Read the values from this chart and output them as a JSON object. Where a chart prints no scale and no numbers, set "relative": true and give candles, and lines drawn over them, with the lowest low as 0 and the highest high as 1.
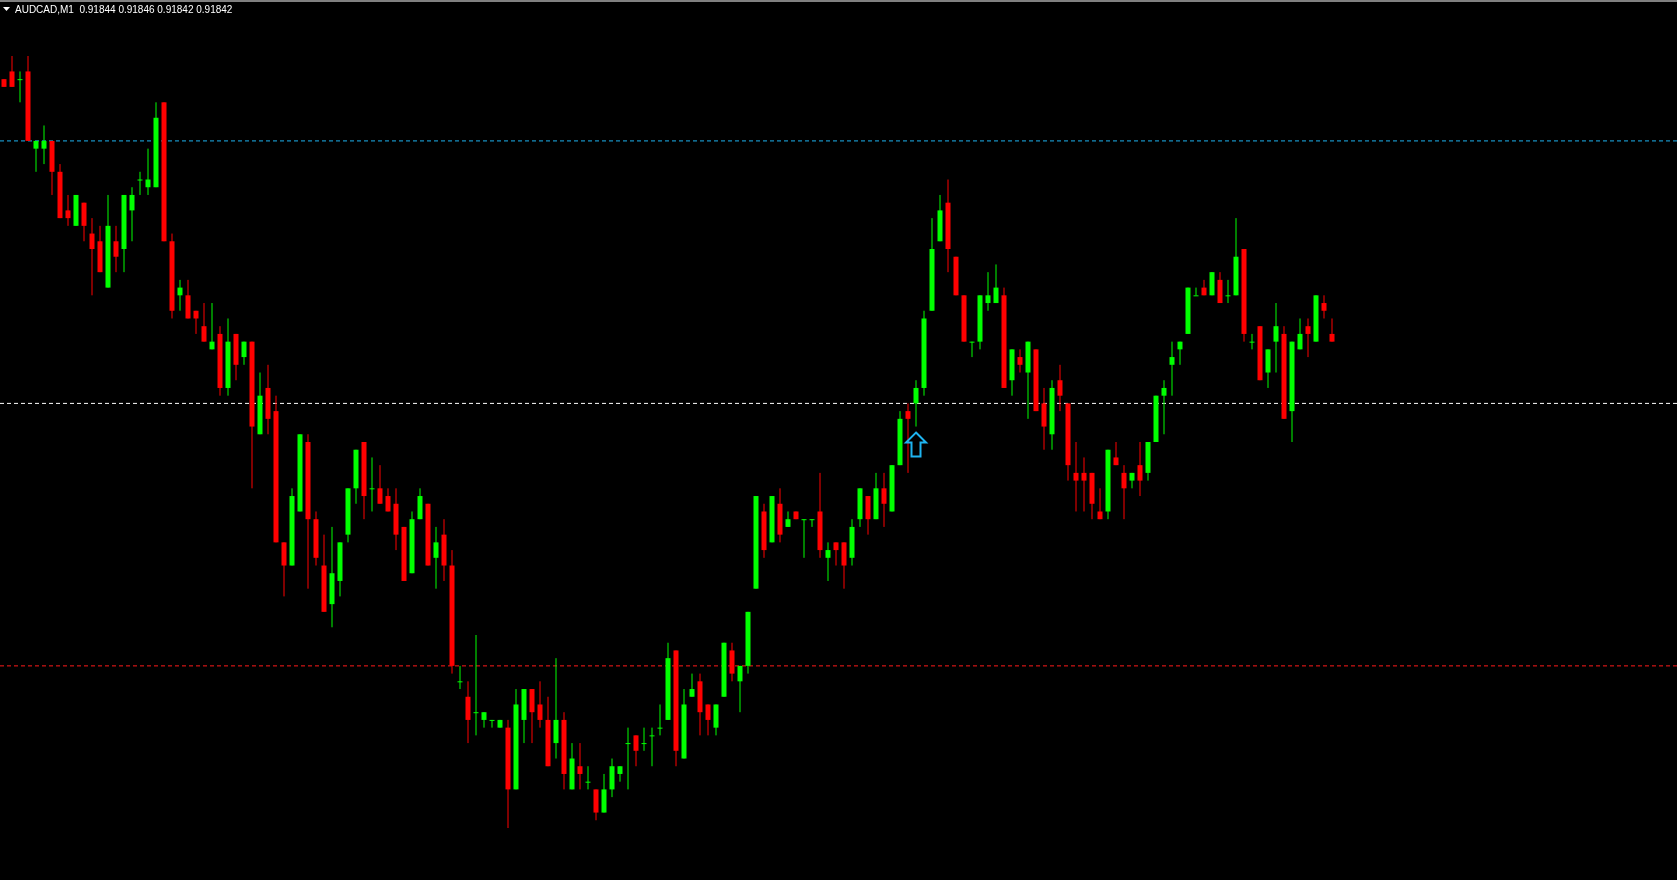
{
  "chart_data": {
    "type": "candlestick",
    "title": "AUDCAD,M1  0.91844 0.91846 0.91842 0.91842",
    "relative": true,
    "categories": [
      null,
      null,
      null,
      null,
      null,
      null,
      null,
      null,
      null,
      null,
      null,
      null,
      null,
      null,
      null,
      null,
      null,
      null,
      null,
      null,
      null,
      null,
      null,
      null,
      null,
      null,
      null,
      null,
      null,
      null,
      null,
      null,
      null,
      null,
      null,
      null,
      null,
      null,
      null,
      null,
      null,
      null,
      null,
      null,
      null,
      null,
      null,
      null,
      null,
      null,
      null,
      null,
      null,
      null,
      null,
      null,
      null,
      null,
      null,
      null,
      null,
      null,
      null,
      null,
      null,
      null,
      null,
      null,
      null,
      null,
      null,
      null,
      null,
      null,
      null,
      null,
      null,
      null,
      null,
      null,
      null,
      null,
      null,
      null,
      null,
      null,
      null,
      null,
      null,
      null,
      null,
      null,
      null,
      null,
      null,
      null,
      null,
      null,
      null,
      null,
      null,
      null,
      null,
      null,
      null,
      null,
      null,
      null,
      null,
      null,
      null,
      null,
      null,
      null,
      null,
      null,
      null,
      null,
      null,
      null,
      null,
      null,
      null,
      null,
      null,
      null,
      null,
      null,
      null,
      null,
      null,
      null,
      null,
      null,
      null,
      null,
      null,
      null,
      null,
      null,
      null,
      null,
      null,
      null,
      null,
      null,
      null,
      null,
      null,
      null,
      null,
      null,
      null,
      null,
      null,
      null,
      null,
      null,
      null,
      null,
      null,
      null,
      null,
      null,
      null,
      null,
      null
    ],
    "ohlc": [
      [
        0.97,
        0.97,
        0.96,
        0.96
      ],
      [
        0.98,
        1.0,
        0.96,
        0.96
      ],
      [
        0.97,
        0.98,
        0.94,
        0.97
      ],
      [
        0.98,
        1.0,
        0.89,
        0.89
      ],
      [
        0.88,
        0.89,
        0.85,
        0.89
      ],
      [
        0.88,
        0.91,
        0.86,
        0.89
      ],
      [
        0.89,
        0.89,
        0.82,
        0.85
      ],
      [
        0.85,
        0.86,
        0.79,
        0.79
      ],
      [
        0.8,
        0.82,
        0.78,
        0.79
      ],
      [
        0.78,
        0.82,
        0.78,
        0.82
      ],
      [
        0.81,
        0.81,
        0.76,
        0.78
      ],
      [
        0.77,
        0.79,
        0.69,
        0.75
      ],
      [
        0.76,
        0.78,
        0.72,
        0.72
      ],
      [
        0.7,
        0.82,
        0.7,
        0.78
      ],
      [
        0.76,
        0.78,
        0.72,
        0.74
      ],
      [
        0.75,
        0.82,
        0.72,
        0.82
      ],
      [
        0.8,
        0.83,
        0.76,
        0.82
      ],
      [
        0.84,
        0.85,
        0.82,
        0.84
      ],
      [
        0.83,
        0.88,
        0.82,
        0.84
      ],
      [
        0.83,
        0.94,
        0.83,
        0.92
      ],
      [
        0.94,
        0.94,
        0.76,
        0.76
      ],
      [
        0.76,
        0.77,
        0.66,
        0.67
      ],
      [
        0.69,
        0.71,
        0.67,
        0.7
      ],
      [
        0.69,
        0.71,
        0.66,
        0.66
      ],
      [
        0.67,
        0.67,
        0.64,
        0.66
      ],
      [
        0.65,
        0.68,
        0.63,
        0.63
      ],
      [
        0.62,
        0.68,
        0.62,
        0.63
      ],
      [
        0.64,
        0.65,
        0.56,
        0.57
      ],
      [
        0.57,
        0.66,
        0.56,
        0.63
      ],
      [
        0.64,
        0.64,
        0.58,
        0.6
      ],
      [
        0.61,
        0.63,
        0.6,
        0.63
      ],
      [
        0.63,
        0.63,
        0.44,
        0.52
      ],
      [
        0.51,
        0.59,
        0.51,
        0.56
      ],
      [
        0.57,
        0.6,
        0.51,
        0.53
      ],
      [
        0.54,
        0.56,
        0.37,
        0.37
      ],
      [
        0.37,
        0.37,
        0.3,
        0.34
      ],
      [
        0.34,
        0.44,
        0.34,
        0.43
      ],
      [
        0.41,
        0.51,
        0.41,
        0.51
      ],
      [
        0.5,
        0.51,
        0.31,
        0.4
      ],
      [
        0.4,
        0.41,
        0.34,
        0.35
      ],
      [
        0.34,
        0.38,
        0.28,
        0.28
      ],
      [
        0.29,
        0.39,
        0.26,
        0.33
      ],
      [
        0.32,
        0.37,
        0.3,
        0.37
      ],
      [
        0.38,
        0.44,
        0.37,
        0.44
      ],
      [
        0.44,
        0.49,
        0.42,
        0.49
      ],
      [
        0.5,
        0.5,
        0.4,
        0.43
      ],
      [
        0.44,
        0.48,
        0.41,
        0.44
      ],
      [
        0.44,
        0.47,
        0.42,
        0.42
      ],
      [
        0.43,
        0.44,
        0.41,
        0.41
      ],
      [
        0.42,
        0.44,
        0.36,
        0.38
      ],
      [
        0.39,
        0.39,
        0.32,
        0.32
      ],
      [
        0.33,
        0.41,
        0.33,
        0.4
      ],
      [
        0.4,
        0.44,
        0.4,
        0.43
      ],
      [
        0.42,
        0.42,
        0.34,
        0.34
      ],
      [
        0.35,
        0.39,
        0.31,
        0.37
      ],
      [
        0.38,
        0.4,
        0.32,
        0.34
      ],
      [
        0.34,
        0.36,
        0.2,
        0.21
      ],
      [
        0.19,
        0.21,
        0.18,
        0.19
      ],
      [
        0.17,
        0.19,
        0.11,
        0.14
      ],
      [
        0.15,
        0.25,
        0.12,
        0.15
      ],
      [
        0.14,
        0.15,
        0.13,
        0.15
      ],
      [
        0.14,
        0.14,
        0.13,
        0.14
      ],
      [
        0.13,
        0.14,
        0.13,
        0.14
      ],
      [
        0.13,
        0.14,
        0.0,
        0.05
      ],
      [
        0.05,
        0.18,
        0.05,
        0.16
      ],
      [
        0.14,
        0.18,
        0.11,
        0.18
      ],
      [
        0.18,
        0.18,
        0.11,
        0.15
      ],
      [
        0.16,
        0.19,
        0.13,
        0.14
      ],
      [
        0.14,
        0.17,
        0.08,
        0.08
      ],
      [
        0.11,
        0.22,
        0.09,
        0.14
      ],
      [
        0.14,
        0.15,
        0.05,
        0.07
      ],
      [
        0.05,
        0.11,
        0.05,
        0.09
      ],
      [
        0.08,
        0.11,
        0.05,
        0.07
      ],
      [
        0.06,
        0.08,
        0.05,
        0.06
      ],
      [
        0.05,
        0.05,
        0.01,
        0.02
      ],
      [
        0.02,
        0.07,
        0.02,
        0.05
      ],
      [
        0.05,
        0.09,
        0.04,
        0.08
      ],
      [
        0.07,
        0.08,
        0.06,
        0.08
      ],
      [
        0.11,
        0.13,
        0.05,
        0.11
      ],
      [
        0.12,
        0.12,
        0.08,
        0.1
      ],
      [
        0.11,
        0.13,
        0.1,
        0.11
      ],
      [
        0.12,
        0.13,
        0.08,
        0.12
      ],
      [
        0.13,
        0.16,
        0.12,
        0.13
      ],
      [
        0.14,
        0.24,
        0.14,
        0.22
      ],
      [
        0.23,
        0.23,
        0.08,
        0.1
      ],
      [
        0.09,
        0.18,
        0.09,
        0.16
      ],
      [
        0.17,
        0.2,
        0.17,
        0.18
      ],
      [
        0.19,
        0.2,
        0.12,
        0.15
      ],
      [
        0.16,
        0.16,
        0.12,
        0.14
      ],
      [
        0.13,
        0.16,
        0.12,
        0.16
      ],
      [
        0.17,
        0.24,
        0.17,
        0.24
      ],
      [
        0.23,
        0.24,
        0.19,
        0.2
      ],
      [
        0.19,
        0.21,
        0.15,
        0.21
      ],
      [
        0.21,
        0.28,
        0.2,
        0.28
      ],
      [
        0.31,
        0.43,
        0.31,
        0.43
      ],
      [
        0.41,
        0.42,
        0.35,
        0.36
      ],
      [
        0.37,
        0.43,
        0.37,
        0.43
      ],
      [
        0.42,
        0.44,
        0.37,
        0.38
      ],
      [
        0.39,
        0.41,
        0.39,
        0.4
      ],
      [
        0.41,
        0.41,
        0.4,
        0.4
      ],
      [
        0.4,
        0.4,
        0.35,
        0.4
      ],
      [
        0.4,
        0.4,
        0.39,
        0.4
      ],
      [
        0.41,
        0.46,
        0.35,
        0.36
      ],
      [
        0.35,
        0.37,
        0.32,
        0.36
      ],
      [
        0.37,
        0.37,
        0.34,
        0.36
      ],
      [
        0.37,
        0.37,
        0.31,
        0.34
      ],
      [
        0.35,
        0.4,
        0.34,
        0.39
      ],
      [
        0.4,
        0.44,
        0.39,
        0.44
      ],
      [
        0.43,
        0.43,
        0.38,
        0.4
      ],
      [
        0.4,
        0.46,
        0.4,
        0.44
      ],
      [
        0.44,
        0.46,
        0.39,
        0.42
      ],
      [
        0.41,
        0.47,
        0.41,
        0.47
      ],
      [
        0.47,
        0.54,
        0.47,
        0.53
      ],
      [
        0.54,
        0.55,
        0.46,
        0.53
      ],
      [
        0.55,
        0.58,
        0.52,
        0.57
      ],
      [
        0.57,
        0.67,
        0.56,
        0.66
      ],
      [
        0.67,
        0.79,
        0.67,
        0.75
      ],
      [
        0.76,
        0.82,
        0.76,
        0.8
      ],
      [
        0.81,
        0.84,
        0.72,
        0.75
      ],
      [
        0.74,
        0.74,
        0.69,
        0.69
      ],
      [
        0.69,
        0.69,
        0.63,
        0.63
      ],
      [
        0.63,
        0.63,
        0.61,
        0.63
      ],
      [
        0.63,
        0.69,
        0.62,
        0.69
      ],
      [
        0.68,
        0.72,
        0.67,
        0.69
      ],
      [
        0.68,
        0.73,
        0.68,
        0.7
      ],
      [
        0.69,
        0.7,
        0.57,
        0.57
      ],
      [
        0.58,
        0.62,
        0.56,
        0.62
      ],
      [
        0.61,
        0.62,
        0.59,
        0.6
      ],
      [
        0.59,
        0.63,
        0.53,
        0.63
      ],
      [
        0.62,
        0.62,
        0.54,
        0.54
      ],
      [
        0.55,
        0.57,
        0.49,
        0.52
      ],
      [
        0.51,
        0.58,
        0.49,
        0.57
      ],
      [
        0.58,
        0.6,
        0.54,
        0.56
      ],
      [
        0.55,
        0.55,
        0.45,
        0.47
      ],
      [
        0.46,
        0.5,
        0.41,
        0.45
      ],
      [
        0.46,
        0.48,
        0.41,
        0.45
      ],
      [
        0.46,
        0.46,
        0.4,
        0.42
      ],
      [
        0.41,
        0.44,
        0.4,
        0.4
      ],
      [
        0.41,
        0.49,
        0.4,
        0.49
      ],
      [
        0.48,
        0.5,
        0.47,
        0.47
      ],
      [
        0.46,
        0.47,
        0.4,
        0.44
      ],
      [
        0.45,
        0.46,
        0.44,
        0.46
      ],
      [
        0.47,
        0.5,
        0.43,
        0.45
      ],
      [
        0.46,
        0.5,
        0.45,
        0.5
      ],
      [
        0.5,
        0.56,
        0.5,
        0.56
      ],
      [
        0.56,
        0.58,
        0.51,
        0.57
      ],
      [
        0.6,
        0.63,
        0.56,
        0.61
      ],
      [
        0.62,
        0.63,
        0.6,
        0.63
      ],
      [
        0.64,
        0.7,
        0.64,
        0.7
      ],
      [
        0.69,
        0.7,
        0.69,
        0.69
      ],
      [
        0.7,
        0.71,
        0.69,
        0.69
      ],
      [
        0.69,
        0.72,
        0.69,
        0.72
      ],
      [
        0.71,
        0.72,
        0.68,
        0.68
      ],
      [
        0.69,
        0.71,
        0.68,
        0.69
      ],
      [
        0.69,
        0.79,
        0.69,
        0.74
      ],
      [
        0.75,
        0.75,
        0.63,
        0.64
      ],
      [
        0.63,
        0.64,
        0.62,
        0.63
      ],
      [
        0.65,
        0.65,
        0.58,
        0.58
      ],
      [
        0.59,
        0.62,
        0.57,
        0.62
      ],
      [
        0.63,
        0.68,
        0.59,
        0.65
      ],
      [
        0.64,
        0.65,
        0.53,
        0.53
      ],
      [
        0.54,
        0.63,
        0.5,
        0.63
      ],
      [
        0.62,
        0.66,
        0.62,
        0.64
      ],
      [
        0.65,
        0.66,
        0.61,
        0.64
      ],
      [
        0.63,
        0.69,
        0.63,
        0.69
      ],
      [
        0.68,
        0.69,
        0.66,
        0.67
      ],
      [
        0.64,
        0.66,
        0.63,
        0.63
      ]
    ],
    "ref_lines": [
      {
        "axis": "y",
        "value": 0.89,
        "color": "#1eb4f0",
        "line_style": "dashed"
      },
      {
        "axis": "y",
        "value": 0.55,
        "color": "#ffffff",
        "line_style": "dashed"
      },
      {
        "axis": "y",
        "value": 0.21,
        "color": "#ff1a1a",
        "line_style": "dashed"
      }
    ]
  }
}
